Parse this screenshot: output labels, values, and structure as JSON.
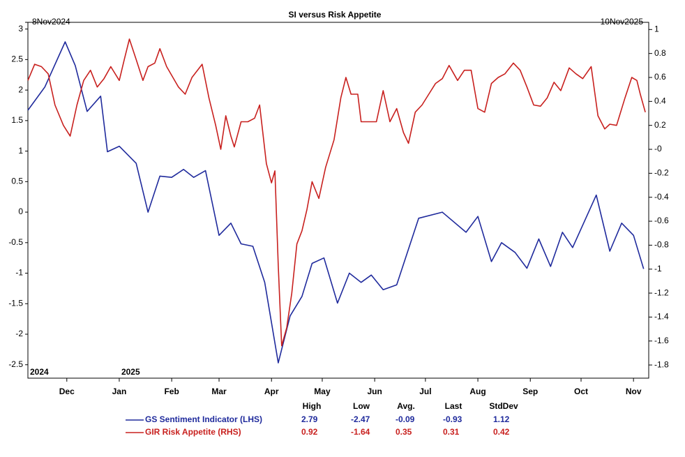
{
  "chart_data": {
    "type": "line",
    "title": "SI versus Risk Appetite",
    "range_labels": [
      "8Nov2024",
      "10Nov2025"
    ],
    "xlim": [
      "2024-11-08",
      "2025-11-10"
    ],
    "xticks": [
      {
        "value": "2024-12-01",
        "label": "Dec"
      },
      {
        "value": "2025-01-01",
        "label": "Jan"
      },
      {
        "value": "2025-02-01",
        "label": "Feb"
      },
      {
        "value": "2025-03-01",
        "label": "Mar"
      },
      {
        "value": "2025-04-01",
        "label": "Apr"
      },
      {
        "value": "2025-05-01",
        "label": "May"
      },
      {
        "value": "2025-06-01",
        "label": "Jun"
      },
      {
        "value": "2025-07-01",
        "label": "Jul"
      },
      {
        "value": "2025-08-01",
        "label": "Aug"
      },
      {
        "value": "2025-09-01",
        "label": "Sep"
      },
      {
        "value": "2025-10-01",
        "label": "Oct"
      },
      {
        "value": "2025-11-01",
        "label": "Nov"
      }
    ],
    "year_labels": [
      {
        "value": "2024-11-08",
        "label": "2024"
      },
      {
        "value": "2025-01-01",
        "label": "2025"
      }
    ],
    "ylim": [
      -2.72,
      3.11
    ],
    "yticks": [
      3,
      2.5,
      2,
      1.5,
      1,
      0.5,
      0,
      -0.5,
      -1,
      -1.5,
      -2,
      -2.5
    ],
    "y2lim": [
      -1.91,
      1.06
    ],
    "y2ticks": [
      1,
      0.8,
      0.6,
      0.4,
      0.2,
      {
        "value": 0,
        "label": "-0"
      },
      -0.2,
      -0.4,
      -0.6,
      -0.8,
      -1,
      -1.2,
      -1.4,
      -1.6,
      -1.8
    ],
    "stats_headers": [
      "High",
      "Low",
      "Avg.",
      "Last",
      "StdDev"
    ],
    "series": [
      {
        "name": "GS Sentiment Indicator (LHS)",
        "color": "#1f2a9c",
        "axis": "y",
        "stats": [
          2.79,
          -2.47,
          -0.09,
          -0.93,
          1.12
        ],
        "x": [
          "2024-11-08",
          "2024-11-18",
          "2024-11-30",
          "2024-12-06",
          "2024-12-13",
          "2024-12-21",
          "2024-12-25",
          "2025-01-01",
          "2025-01-11",
          "2025-01-18",
          "2025-01-25",
          "2025-02-01",
          "2025-02-08",
          "2025-02-14",
          "2025-02-21",
          "2025-03-01",
          "2025-03-08",
          "2025-03-14",
          "2025-03-21",
          "2025-03-28",
          "2025-04-05",
          "2025-04-12",
          "2025-04-19",
          "2025-04-25",
          "2025-05-02",
          "2025-05-10",
          "2025-05-17",
          "2025-05-24",
          "2025-05-30",
          "2025-06-06",
          "2025-06-14",
          "2025-06-27",
          "2025-07-11",
          "2025-07-25",
          "2025-08-01",
          "2025-08-09",
          "2025-08-15",
          "2025-08-23",
          "2025-08-30",
          "2025-09-06",
          "2025-09-13",
          "2025-09-20",
          "2025-09-26",
          "2025-10-10",
          "2025-10-18",
          "2025-10-25",
          "2025-11-01",
          "2025-11-07"
        ],
        "values": [
          1.67,
          2.05,
          2.79,
          2.4,
          1.65,
          1.9,
          0.99,
          1.08,
          0.8,
          0.0,
          0.59,
          0.57,
          0.7,
          0.57,
          0.68,
          -0.38,
          -0.18,
          -0.52,
          -0.56,
          -1.15,
          -2.47,
          -1.7,
          -1.38,
          -0.84,
          -0.75,
          -1.49,
          -1.0,
          -1.15,
          -1.03,
          -1.27,
          -1.19,
          -0.1,
          0.0,
          -0.33,
          -0.07,
          -0.81,
          -0.5,
          -0.66,
          -0.92,
          -0.44,
          -0.89,
          -0.33,
          -0.58,
          0.28,
          -0.64,
          -0.18,
          -0.38,
          -0.93
        ]
      },
      {
        "name": "GIR Risk Appetite (RHS)",
        "color": "#c8201e",
        "axis": "y2",
        "stats": [
          0.92,
          -1.64,
          0.35,
          0.31,
          0.42
        ],
        "x": [
          "2024-11-08",
          "2024-11-12",
          "2024-11-16",
          "2024-11-20",
          "2024-11-24",
          "2024-11-29",
          "2024-12-03",
          "2024-12-07",
          "2024-12-11",
          "2024-12-15",
          "2024-12-19",
          "2024-12-23",
          "2024-12-27",
          "2025-01-01",
          "2025-01-04",
          "2025-01-07",
          "2025-01-11",
          "2025-01-15",
          "2025-01-18",
          "2025-01-22",
          "2025-01-25",
          "2025-01-29",
          "2025-02-05",
          "2025-02-09",
          "2025-02-13",
          "2025-02-19",
          "2025-02-23",
          "2025-02-27",
          "2025-03-02",
          "2025-03-05",
          "2025-03-08",
          "2025-03-10",
          "2025-03-14",
          "2025-03-18",
          "2025-03-22",
          "2025-03-25",
          "2025-03-29",
          "2025-04-01",
          "2025-04-03",
          "2025-04-05",
          "2025-04-07",
          "2025-04-10",
          "2025-04-13",
          "2025-04-16",
          "2025-04-19",
          "2025-04-22",
          "2025-04-25",
          "2025-04-29",
          "2025-05-03",
          "2025-05-08",
          "2025-05-12",
          "2025-05-15",
          "2025-05-18",
          "2025-05-22",
          "2025-05-24",
          "2025-05-28",
          "2025-06-02",
          "2025-06-06",
          "2025-06-10",
          "2025-06-14",
          "2025-06-18",
          "2025-06-21",
          "2025-06-25",
          "2025-06-29",
          "2025-07-03",
          "2025-07-07",
          "2025-07-11",
          "2025-07-15",
          "2025-07-20",
          "2025-07-24",
          "2025-07-28",
          "2025-08-01",
          "2025-08-05",
          "2025-08-09",
          "2025-08-13",
          "2025-08-17",
          "2025-08-22",
          "2025-08-26",
          "2025-08-30",
          "2025-09-03",
          "2025-09-07",
          "2025-09-11",
          "2025-09-15",
          "2025-09-19",
          "2025-09-24",
          "2025-09-28",
          "2025-10-02",
          "2025-10-07",
          "2025-10-11",
          "2025-10-15",
          "2025-10-18",
          "2025-10-22",
          "2025-10-27",
          "2025-10-31",
          "2025-11-03",
          "2025-11-05",
          "2025-11-08"
        ],
        "values": [
          0.575,
          0.71,
          0.69,
          0.63,
          0.37,
          0.2,
          0.11,
          0.37,
          0.575,
          0.66,
          0.52,
          0.59,
          0.69,
          0.575,
          0.75,
          0.92,
          0.75,
          0.575,
          0.69,
          0.72,
          0.84,
          0.69,
          0.52,
          0.46,
          0.6,
          0.71,
          0.43,
          0.2,
          0.0,
          0.28,
          0.11,
          0.02,
          0.23,
          0.23,
          0.26,
          0.37,
          -0.12,
          -0.28,
          -0.18,
          -0.97,
          -1.64,
          -1.49,
          -1.2,
          -0.79,
          -0.68,
          -0.5,
          -0.27,
          -0.41,
          -0.15,
          0.08,
          0.43,
          0.6,
          0.46,
          0.46,
          0.23,
          0.23,
          0.23,
          0.49,
          0.23,
          0.34,
          0.14,
          0.05,
          0.31,
          0.37,
          0.46,
          0.55,
          0.59,
          0.7,
          0.575,
          0.66,
          0.66,
          0.34,
          0.31,
          0.55,
          0.6,
          0.63,
          0.72,
          0.66,
          0.52,
          0.37,
          0.36,
          0.43,
          0.56,
          0.49,
          0.68,
          0.63,
          0.59,
          0.69,
          0.28,
          0.17,
          0.21,
          0.2,
          0.43,
          0.6,
          0.575,
          0.46,
          0.31
        ]
      }
    ]
  }
}
